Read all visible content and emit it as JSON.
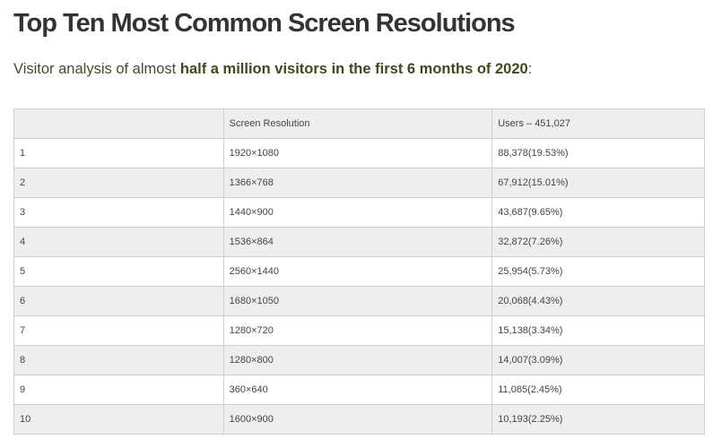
{
  "title": "Top Ten Most Common Screen Resolutions",
  "intro": {
    "prefix": "Visitor analysis of almost ",
    "highlight": "half a million visitors in the first 6 months of 2020",
    "suffix": ":"
  },
  "table": {
    "headers": [
      "",
      "Screen Resolution",
      "Users – 451,027"
    ],
    "rows": [
      [
        "1",
        "1920×1080",
        "88,378(19.53%)"
      ],
      [
        "2",
        "1366×768",
        "67,912(15.01%)"
      ],
      [
        "3",
        "1440×900",
        "43,687(9.65%)"
      ],
      [
        "4",
        "1536×864",
        "32,872(7.26%)"
      ],
      [
        "5",
        "2560×1440",
        "25,954(5.73%)"
      ],
      [
        "6",
        "1680×1050",
        "20,068(4.43%)"
      ],
      [
        "7",
        "1280×720",
        "15,138(3.34%)"
      ],
      [
        "8",
        "1280×800",
        "14,007(3.09%)"
      ],
      [
        "9",
        "360×640",
        "11,085(2.45%)"
      ],
      [
        "10",
        "1600×900",
        "10,193(2.25%)"
      ]
    ]
  },
  "colors": {
    "text": "#333333",
    "highlight": "#3d4a1e",
    "header_bg": "#eeeeee",
    "stripe_bg": "#eeeeee",
    "border": "#cfcfcf"
  }
}
